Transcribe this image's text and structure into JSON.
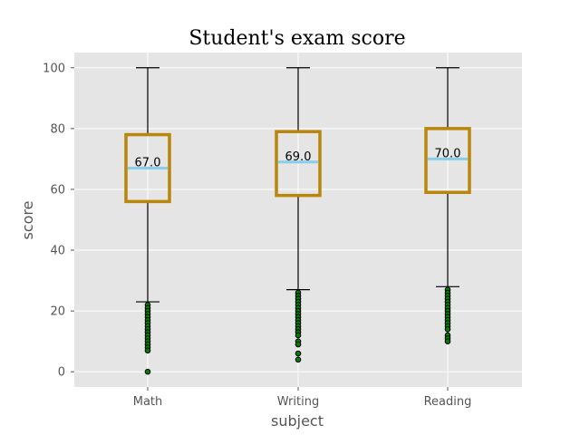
{
  "chart_data": {
    "type": "box",
    "title": "Student's exam score",
    "xlabel": "subject",
    "ylabel": "score",
    "ylim": [
      -5,
      105
    ],
    "yticks": [
      0,
      20,
      40,
      60,
      80,
      100
    ],
    "grid": true,
    "colors": {
      "background": "#e5e5e5",
      "box": "#b8860b",
      "median": "#87ceeb",
      "flier_fill": "#008000",
      "flier_edge": "#000000",
      "whisker": "#000000"
    },
    "categories": [
      "Math",
      "Writing",
      "Reading"
    ],
    "boxes": [
      {
        "name": "Math",
        "whisker_low": 23,
        "q1": 56,
        "median": 67,
        "q3": 78,
        "whisker_high": 100,
        "median_label": "67.0",
        "fliers": [
          22,
          21,
          20,
          19,
          18,
          17,
          16,
          15,
          14,
          13,
          12,
          11,
          10,
          9,
          8,
          7,
          0
        ]
      },
      {
        "name": "Writing",
        "whisker_low": 27,
        "q1": 58,
        "median": 69,
        "q3": 79,
        "whisker_high": 100,
        "median_label": "69.0",
        "fliers": [
          26,
          25,
          24,
          23,
          22,
          21,
          20,
          19,
          18,
          17,
          16,
          15,
          14,
          13,
          12,
          10,
          9,
          6,
          4
        ]
      },
      {
        "name": "Reading",
        "whisker_low": 28,
        "q1": 59,
        "median": 70,
        "q3": 80,
        "whisker_high": 100,
        "median_label": "70.0",
        "fliers": [
          27,
          26,
          25,
          24,
          23,
          22,
          21,
          20,
          19,
          18,
          17,
          16,
          15,
          14,
          12,
          11,
          10
        ]
      }
    ]
  }
}
